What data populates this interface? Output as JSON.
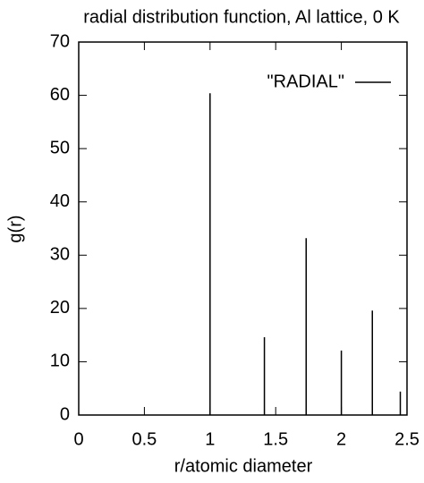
{
  "chart_data": {
    "type": "impulse",
    "title": "radial distribution function, Al lattice, 0 K",
    "x_label": "r/atomic diameter",
    "y_label": "g(r)",
    "series": [
      {
        "name": "\"RADIAL\"",
        "color": "#000000",
        "x": [
          1,
          1.414,
          1.732,
          2,
          2.236,
          2.449
        ],
        "values": [
          60.4,
          14.6,
          33.2,
          12.1,
          19.6,
          4.4
        ]
      }
    ],
    "xlim": [
      0,
      2.5
    ],
    "xticks": [
      0,
      0.5,
      1,
      1.5,
      2,
      2.5
    ],
    "ylim": [
      0,
      70
    ],
    "yticks": [
      0,
      10,
      20,
      30,
      40,
      50,
      60,
      70
    ],
    "legend": "top-right"
  }
}
